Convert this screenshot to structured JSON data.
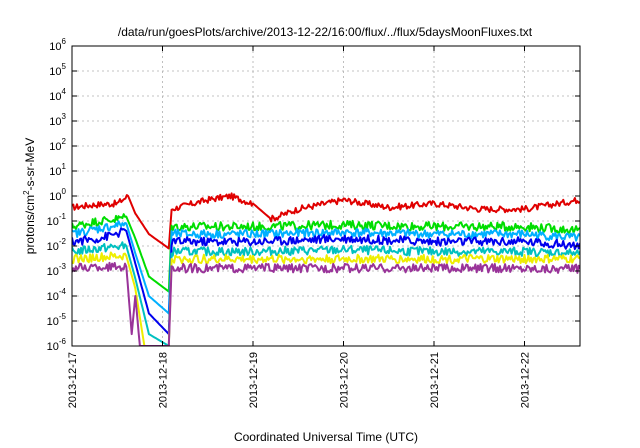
{
  "chart_data": {
    "type": "line",
    "title": "/data/run/goesPlots/archive/2013-12-22/16:00/flux/../flux/5daysMoonFluxes.txt",
    "xlabel": "Coordinated Universal Time (UTC)",
    "ylabel": {
      "base": "protons/cm",
      "sup": "2",
      "rest": "-s-sr-MeV"
    },
    "x_tick_labels": [
      "2013-12-17",
      "2013-12-18",
      "2013-12-19",
      "2013-12-20",
      "2013-12-21",
      "2013-12-22"
    ],
    "xlim": [
      "2013-12-17T00:00",
      "2013-12-22T16:00"
    ],
    "y_scale": "log",
    "ylim": [
      1e-06,
      1000000.0
    ],
    "y_tick_exponents": [
      -6,
      -5,
      -4,
      -3,
      -2,
      -1,
      0,
      1,
      2,
      3,
      4,
      5,
      6
    ],
    "y_tick_base": "10",
    "grid": true,
    "series": [
      {
        "color": "#e00000",
        "values": [
          [
            0.0,
            0.35
          ],
          [
            0.25,
            0.45
          ],
          [
            0.5,
            0.5
          ],
          [
            0.62,
            1.0
          ],
          [
            0.7,
            0.2
          ],
          [
            0.85,
            0.03
          ],
          [
            1.07,
            0.008
          ],
          [
            1.1,
            0.3
          ],
          [
            1.5,
            0.7
          ],
          [
            1.75,
            1.0
          ],
          [
            2.0,
            0.5
          ],
          [
            2.2,
            0.12
          ],
          [
            2.5,
            0.3
          ],
          [
            3.0,
            0.7
          ],
          [
            3.5,
            0.35
          ],
          [
            4.0,
            0.5
          ],
          [
            4.5,
            0.3
          ],
          [
            5.0,
            0.3
          ],
          [
            5.3,
            0.45
          ],
          [
            5.5,
            0.6
          ],
          [
            5.67,
            0.8
          ]
        ]
      },
      {
        "color": "#00dd00",
        "values": [
          [
            0.0,
            0.06
          ],
          [
            0.3,
            0.1
          ],
          [
            0.5,
            0.12
          ],
          [
            0.6,
            0.15
          ],
          [
            0.7,
            0.02
          ],
          [
            0.85,
            0.0006
          ],
          [
            1.07,
            0.00015
          ],
          [
            1.1,
            0.06
          ],
          [
            2.0,
            0.06
          ],
          [
            3.0,
            0.07
          ],
          [
            4.0,
            0.06
          ],
          [
            5.0,
            0.06
          ],
          [
            5.67,
            0.04
          ]
        ]
      },
      {
        "color": "#00b0ff",
        "values": [
          [
            0.0,
            0.03
          ],
          [
            0.3,
            0.05
          ],
          [
            0.6,
            0.08
          ],
          [
            0.7,
            0.005
          ],
          [
            0.85,
            0.0001
          ],
          [
            1.07,
            2e-05
          ],
          [
            1.1,
            0.03
          ],
          [
            2.0,
            0.03
          ],
          [
            3.0,
            0.035
          ],
          [
            4.0,
            0.03
          ],
          [
            5.0,
            0.03
          ],
          [
            5.67,
            0.02
          ]
        ]
      },
      {
        "color": "#0000ee",
        "values": [
          [
            0.0,
            0.015
          ],
          [
            0.3,
            0.02
          ],
          [
            0.6,
            0.04
          ],
          [
            0.7,
            0.002
          ],
          [
            0.85,
            2e-05
          ],
          [
            1.07,
            3e-06
          ],
          [
            1.1,
            0.015
          ],
          [
            2.0,
            0.015
          ],
          [
            3.0,
            0.02
          ],
          [
            4.0,
            0.015
          ],
          [
            5.0,
            0.015
          ],
          [
            5.67,
            0.01
          ]
        ]
      },
      {
        "color": "#00c0c0",
        "values": [
          [
            0.0,
            0.006
          ],
          [
            0.3,
            0.008
          ],
          [
            0.6,
            0.01
          ],
          [
            0.7,
            0.0005
          ],
          [
            0.85,
            3e-06
          ],
          [
            1.07,
            1e-06
          ],
          [
            1.1,
            0.006
          ],
          [
            2.0,
            0.006
          ],
          [
            3.0,
            0.007
          ],
          [
            4.0,
            0.006
          ],
          [
            5.0,
            0.006
          ],
          [
            5.67,
            0.005
          ]
        ]
      },
      {
        "color": "#eeee00",
        "values": [
          [
            0.0,
            0.003
          ],
          [
            0.6,
            0.004
          ],
          [
            0.7,
            0.0002
          ],
          [
            0.8,
            1e-06
          ],
          [
            1.07,
            1e-06
          ],
          [
            1.1,
            0.003
          ],
          [
            2.0,
            0.003
          ],
          [
            3.0,
            0.003
          ],
          [
            4.0,
            0.003
          ],
          [
            5.0,
            0.003
          ],
          [
            5.67,
            0.003
          ]
        ]
      },
      {
        "color": "#993399",
        "values": [
          [
            0.0,
            0.0013
          ],
          [
            0.6,
            0.0015
          ],
          [
            0.66,
            3e-06
          ],
          [
            0.7,
            0.0001
          ],
          [
            0.75,
            1e-06
          ],
          [
            1.07,
            1e-06
          ],
          [
            1.1,
            0.0013
          ],
          [
            2.0,
            0.0013
          ],
          [
            3.0,
            0.0013
          ],
          [
            4.0,
            0.0013
          ],
          [
            5.0,
            0.0013
          ],
          [
            5.67,
            0.0012
          ]
        ]
      }
    ]
  }
}
